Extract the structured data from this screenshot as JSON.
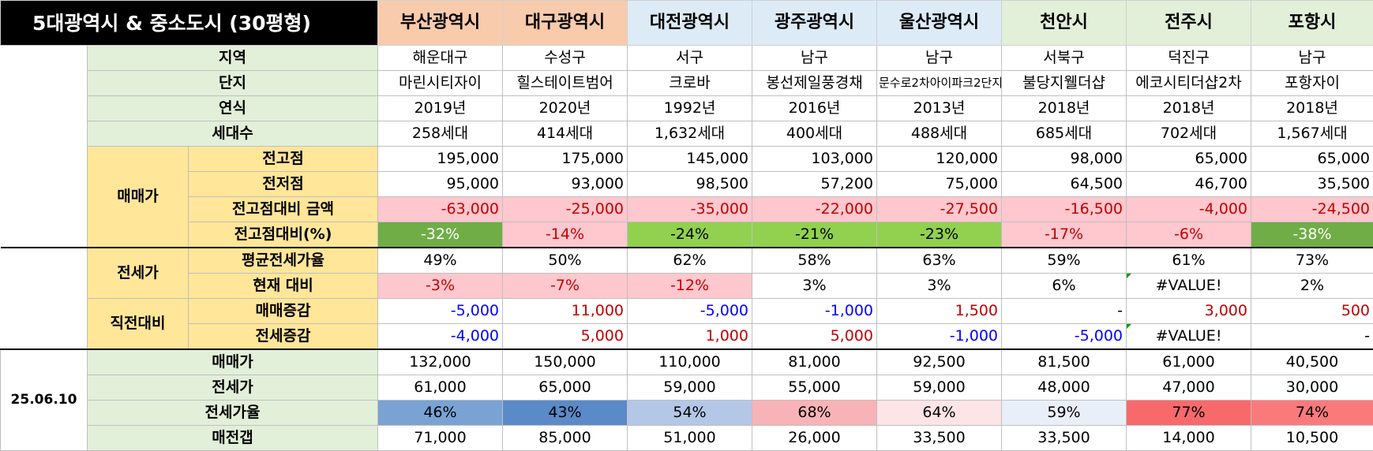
{
  "title": "5대광역시 & 중소도시 (30평형)",
  "cities": [
    {
      "name": "부산광역시",
      "bg": "#f8cbad"
    },
    {
      "name": "대구광역시",
      "bg": "#f8cbad"
    },
    {
      "name": "대전광역시",
      "bg": "#ddebf7"
    },
    {
      "name": "광주광역시",
      "bg": "#ddebf7"
    },
    {
      "name": "울산광역시",
      "bg": "#ddebf7"
    },
    {
      "name": "천안시",
      "bg": "#e2efd9"
    },
    {
      "name": "전주시",
      "bg": "#e2efd9"
    },
    {
      "name": "포항시",
      "bg": "#e2efd9"
    }
  ],
  "labels": {
    "region": "지역",
    "complex": "단지",
    "year": "연식",
    "households": "세대수",
    "sale_group": "매매가",
    "high": "전고점",
    "low": "전저점",
    "diff_amount": "전고점대비 금액",
    "diff_pct": "전고점대비(%)",
    "jeonse_group": "전세가",
    "avg_ratio": "평균전세가율",
    "current_vs": "현재 대비",
    "prev_group": "직전대비",
    "sale_change": "매매증감",
    "jeonse_change": "전세증감",
    "date": "25.06.10",
    "sale_price": "매매가",
    "jeonse_price": "전세가",
    "jeonse_ratio": "전세가율",
    "gap": "매전갭"
  },
  "rows": {
    "region": [
      "해운대구",
      "수성구",
      "서구",
      "남구",
      "남구",
      "서북구",
      "덕진구",
      "남구"
    ],
    "complex": [
      "마린시티자이",
      "힐스테이트범어",
      "크로바",
      "봉선제일풍경채",
      "문수로2차아이파크2단지",
      "불당지웰더샵",
      "에코시티더샵2차",
      "포항자이"
    ],
    "year": [
      "2019년",
      "2020년",
      "1992년",
      "2016년",
      "2013년",
      "2018년",
      "2018년",
      "2018년"
    ],
    "households": [
      "258세대",
      "414세대",
      "1,632세대",
      "400세대",
      "488세대",
      "685세대",
      "702세대",
      "1,567세대"
    ],
    "high": [
      "195,000",
      "175,000",
      "145,000",
      "103,000",
      "120,000",
      "98,000",
      "65,000",
      "65,000"
    ],
    "low": [
      "95,000",
      "93,000",
      "98,500",
      "57,200",
      "75,000",
      "64,500",
      "46,700",
      "35,500"
    ],
    "diff_amount": [
      "-63,000",
      "-25,000",
      "-35,000",
      "-22,000",
      "-27,500",
      "-16,500",
      "-4,000",
      "-24,500"
    ],
    "diff_pct": [
      "-32%",
      "-14%",
      "-24%",
      "-21%",
      "-23%",
      "-17%",
      "-6%",
      "-38%"
    ],
    "avg_ratio": [
      "49%",
      "50%",
      "62%",
      "58%",
      "63%",
      "59%",
      "61%",
      "73%"
    ],
    "current_vs": [
      "-3%",
      "-7%",
      "-12%",
      "3%",
      "3%",
      "6%",
      "#VALUE!",
      "2%"
    ],
    "sale_change": [
      "-5,000",
      "11,000",
      "-5,000",
      "-1,000",
      "1,500",
      "-",
      "3,000",
      "500"
    ],
    "jeonse_change": [
      "-4,000",
      "5,000",
      "1,000",
      "5,000",
      "-1,000",
      "-5,000",
      "#VALUE!",
      "-"
    ],
    "sale_price": [
      "132,000",
      "150,000",
      "110,000",
      "81,000",
      "92,500",
      "81,500",
      "61,000",
      "40,500"
    ],
    "jeonse_price": [
      "61,000",
      "65,000",
      "59,000",
      "55,000",
      "59,000",
      "48,000",
      "47,000",
      "30,000"
    ],
    "jeonse_ratio": [
      "46%",
      "43%",
      "54%",
      "68%",
      "64%",
      "59%",
      "77%",
      "74%"
    ],
    "gap": [
      "71,000",
      "85,000",
      "51,000",
      "26,000",
      "33,500",
      "33,500",
      "14,000",
      "10,500"
    ]
  },
  "colors": {
    "diff_pct_bg": [
      "#70ad47",
      "#ffc7ce",
      "#92d050",
      "#92d050",
      "#92d050",
      "#ffc7ce",
      "#ffc7ce",
      "#70ad47"
    ],
    "current_vs_bg": [
      "#ffc7ce",
      "#ffc7ce",
      "#ffc7ce",
      "#ffffff",
      "#ffffff",
      "#ffffff",
      "#ffffff",
      "#ffffff"
    ],
    "sale_change_color": [
      "#0000ff",
      "#c00000",
      "#0000ff",
      "#0000ff",
      "#c00000",
      "#000000",
      "#c00000",
      "#c00000"
    ],
    "jeonse_change_color": [
      "#0000ff",
      "#c00000",
      "#c00000",
      "#c00000",
      "#0000ff",
      "#0000ff",
      "#000000",
      "#000000"
    ],
    "jeonse_ratio_bg": [
      "#7aa3d4",
      "#5b8ac8",
      "#b4c7e7",
      "#f8b3b8",
      "#fde4e6",
      "#e9eff8",
      "#f8696b",
      "#fa7a7c"
    ]
  }
}
